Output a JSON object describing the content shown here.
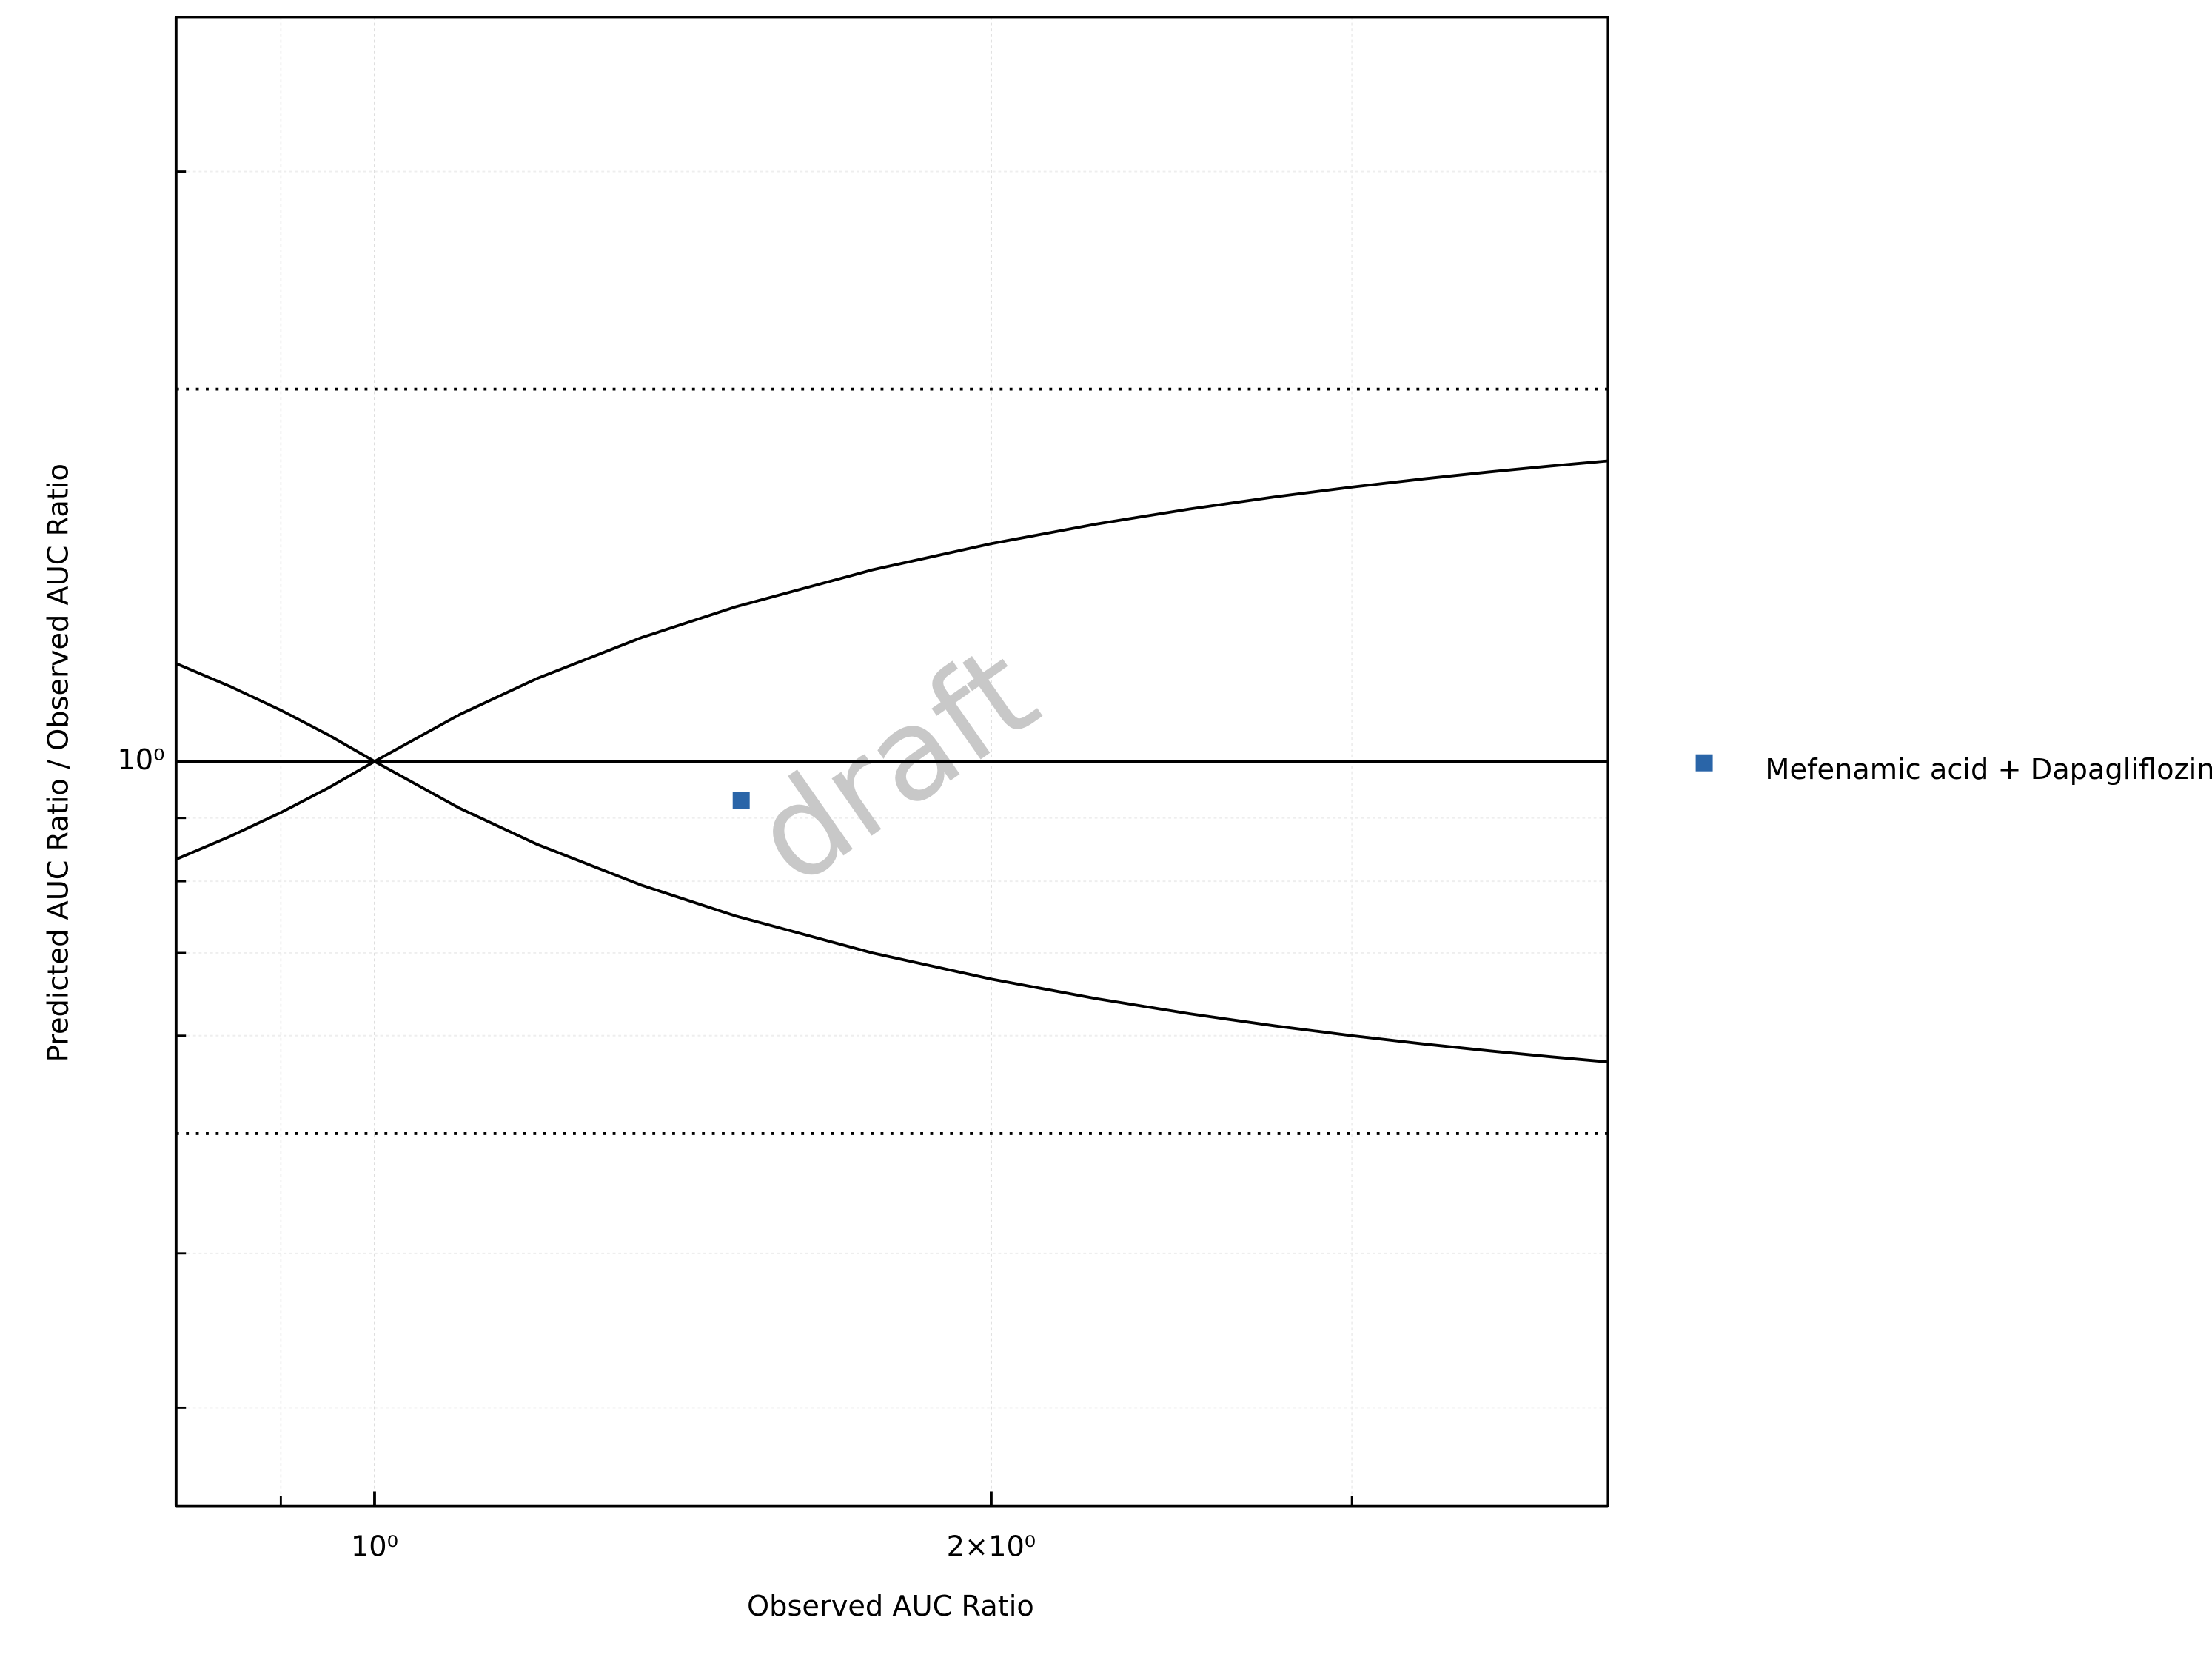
{
  "chart_data": {
    "type": "scatter",
    "watermark": "draft",
    "x_label": "Observed AUC Ratio",
    "y_label": "Predicted AUC Ratio / Observed AUC Ratio",
    "xscale": "log",
    "yscale": "log",
    "xlim": [
      0.8,
      4
    ],
    "ylim": [
      0.25,
      4
    ],
    "xticks": [
      {
        "value": 1,
        "label": "10⁰"
      },
      {
        "value": 2,
        "label": "2×10⁰"
      }
    ],
    "xminor": [
      0.9,
      3
    ],
    "yticks": [
      {
        "value": 1,
        "label": "10⁰"
      }
    ],
    "yminor": [
      0.3,
      0.4,
      0.6,
      0.7,
      0.8,
      0.9,
      3
    ],
    "grid": true,
    "legend": "right",
    "hlines": [
      {
        "y": 1,
        "style": "solid"
      },
      {
        "y": 2,
        "style": "dotted"
      },
      {
        "y": 0.5,
        "style": "dotted"
      }
    ],
    "lines": [
      {
        "color": "#000000",
        "x": [
          0.8,
          0.85,
          0.9,
          0.95,
          1,
          1.1,
          1.2,
          1.35,
          1.5,
          1.75,
          2,
          2.25,
          2.5,
          2.75,
          3,
          3.25,
          3.5,
          3.75,
          4
        ],
        "values": [
          1.2,
          1.15,
          1.1,
          1.05,
          1,
          1.0909,
          1.1667,
          1.2593,
          1.3333,
          1.4286,
          1.5,
          1.5556,
          1.6,
          1.6364,
          1.6667,
          1.6923,
          1.7143,
          1.7333,
          1.75
        ]
      },
      {
        "color": "#000000",
        "x": [
          0.8,
          0.85,
          0.9,
          0.95,
          1,
          1.1,
          1.2,
          1.35,
          1.5,
          1.75,
          2,
          2.25,
          2.5,
          2.75,
          3,
          3.25,
          3.5,
          3.75,
          4
        ],
        "values": [
          0.8333,
          0.8696,
          0.9091,
          0.9524,
          1,
          0.9167,
          0.8571,
          0.7941,
          0.75,
          0.7,
          0.6667,
          0.6429,
          0.625,
          0.6111,
          0.6,
          0.5909,
          0.5833,
          0.5769,
          0.5714
        ]
      }
    ],
    "series": [
      {
        "name": "Mefenamic acid + Dapagliflozin",
        "color": "#2a65a8",
        "x": [
          1.51
        ],
        "values": [
          0.93
        ]
      }
    ]
  }
}
